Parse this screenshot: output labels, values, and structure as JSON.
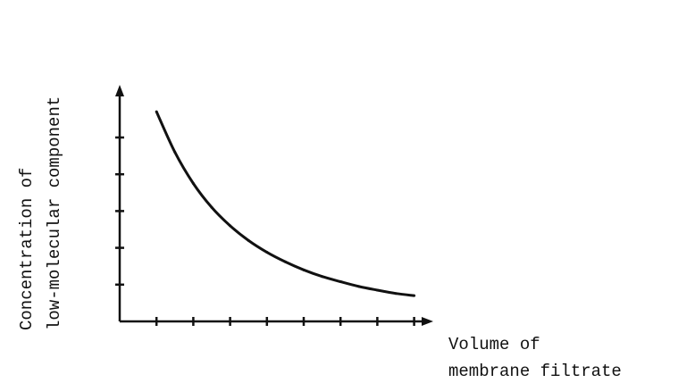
{
  "chart_data": {
    "type": "line",
    "title": "",
    "xlabel_lines": [
      "Volume of",
      "membrane filtrate"
    ],
    "ylabel_lines": [
      "Concentration of",
      "low-molecular component"
    ],
    "x_ticks": 8,
    "y_ticks": 5,
    "xlim": [
      0,
      8.6
    ],
    "ylim": [
      0,
      6.2
    ],
    "grid": false,
    "legend": "none",
    "series": [
      {
        "x": [
          1.0,
          1.5,
          2.0,
          2.5,
          3.0,
          3.5,
          4.0,
          4.5,
          5.0,
          5.5,
          6.0,
          6.5,
          7.0,
          7.5,
          8.0
        ],
        "values": [
          5.7,
          4.6,
          3.75,
          3.1,
          2.6,
          2.2,
          1.88,
          1.62,
          1.4,
          1.22,
          1.08,
          0.95,
          0.85,
          0.76,
          0.7
        ]
      }
    ],
    "line_color": "#111111"
  }
}
